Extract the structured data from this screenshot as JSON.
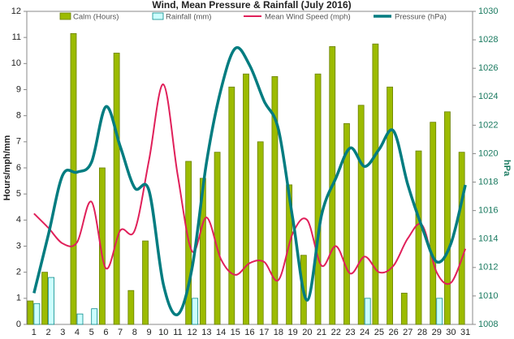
{
  "chart_data": {
    "type": "bar",
    "title": "Wind, Mean Pressure & Rainfall (July 2016)",
    "ylabel": "Hours/mph/mm",
    "y2label": "hPa",
    "categories": [
      "1",
      "2",
      "3",
      "4",
      "5",
      "6",
      "7",
      "8",
      "9",
      "10",
      "11",
      "12",
      "13",
      "14",
      "15",
      "16",
      "17",
      "18",
      "19",
      "20",
      "21",
      "22",
      "23",
      "24",
      "25",
      "26",
      "27",
      "28",
      "29",
      "30",
      "31"
    ],
    "series": [
      {
        "name": "Calm (Hours)",
        "type": "bar",
        "color": "#9cbb00",
        "values": [
          0.9,
          2.0,
          0,
          11.15,
          0,
          6.0,
          10.4,
          1.3,
          3.2,
          0,
          0,
          6.25,
          5.6,
          6.6,
          9.1,
          9.6,
          7.0,
          9.5,
          5.35,
          2.65,
          9.6,
          10.65,
          7.7,
          8.4,
          10.75,
          9.1,
          1.2,
          6.65,
          7.75,
          8.15,
          6.6
        ]
      },
      {
        "name": "Rainfall (mm)",
        "type": "bar",
        "color": "#ccffff",
        "values": [
          0.8,
          1.8,
          0,
          0.4,
          0.6,
          0,
          0,
          0,
          0,
          0,
          0,
          1.0,
          0,
          0,
          0,
          0,
          0,
          0,
          0,
          0,
          0,
          0,
          0,
          1.0,
          0,
          0,
          0,
          0,
          1.0,
          0,
          0
        ]
      },
      {
        "name": "Mean Wind Speed (mph)",
        "type": "line",
        "color": "#e0205a",
        "values": [
          4.25,
          3.7,
          3.1,
          3.15,
          4.7,
          2.15,
          3.6,
          3.6,
          6.3,
          9.2,
          5.7,
          2.8,
          4.1,
          2.5,
          1.9,
          2.35,
          2.4,
          1.7,
          3.5,
          4.0,
          2.25,
          3.0,
          1.95,
          2.6,
          2.0,
          2.25,
          3.3,
          3.8,
          2.0,
          1.6,
          2.9
        ]
      },
      {
        "name": "Pressure (hPa)",
        "type": "line",
        "axis": "y2",
        "color": "#007c80",
        "values": [
          1010.2,
          1014.3,
          1018.5,
          1018.7,
          1019.4,
          1023.3,
          1020.5,
          1017.6,
          1017.4,
          1010.8,
          1008.7,
          1012.0,
          1019.4,
          1024.5,
          1027.4,
          1026.2,
          1023.7,
          1021.7,
          1015.4,
          1009.7,
          1015.7,
          1018.3,
          1020.4,
          1019.1,
          1020.3,
          1021.6,
          1017.8,
          1014.8,
          1012.4,
          1013.7,
          1017.8
        ]
      }
    ],
    "ylim": [
      0,
      12
    ],
    "yticks": [
      0,
      1,
      2,
      3,
      4,
      5,
      6,
      7,
      8,
      9,
      10,
      11,
      12
    ],
    "y2lim": [
      1008,
      1030
    ],
    "y2ticks": [
      1008,
      1010,
      1012,
      1014,
      1016,
      1018,
      1020,
      1022,
      1024,
      1026,
      1028,
      1030
    ],
    "grid": false
  }
}
